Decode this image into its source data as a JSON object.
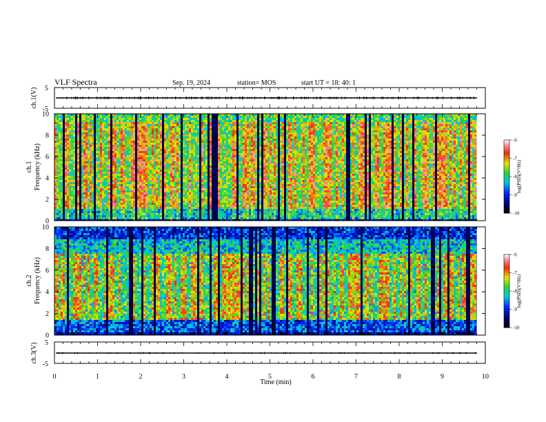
{
  "header": {
    "title": "VLF Spectra",
    "date": "Sep. 19, 2024",
    "station": "station= MOS",
    "start": "start UT =   18: 40: 1"
  },
  "chart_data": [
    {
      "type": "line",
      "panel": "ch1-waveform",
      "ylabel": "ch.1(V)",
      "ylim": [
        -5,
        5
      ],
      "yticks": [
        "5",
        "-5"
      ],
      "x": [
        0,
        10
      ],
      "y": [
        0,
        0
      ],
      "xlim": [
        0,
        10
      ]
    },
    {
      "type": "heatmap",
      "panel": "ch1-spectrogram",
      "ylabel_top": "ch.1",
      "ylabel": "Frequency (kHz)",
      "ylim": [
        0,
        10
      ],
      "yticks": [
        "0",
        "2",
        "4",
        "6",
        "8",
        "10"
      ],
      "xlim": [
        0,
        10
      ],
      "data_end_min": 9.8,
      "colorbar": {
        "label": "log(PSD)(V²/Hz)",
        "range": [
          -10,
          -6
        ],
        "ticks": [
          "-6",
          "-7",
          "-8",
          "-9",
          "-10"
        ]
      }
    },
    {
      "type": "heatmap",
      "panel": "ch2-spectrogram",
      "ylabel_top": "ch.2",
      "ylabel": "Frequency (kHz)",
      "ylim": [
        0,
        10
      ],
      "yticks": [
        "0",
        "2",
        "4",
        "6",
        "8",
        "10"
      ],
      "xlim": [
        0,
        10
      ],
      "data_end_min": 9.8,
      "colorbar": {
        "label": "log(PSD)(V²/Hz)",
        "range": [
          -10,
          -6
        ],
        "ticks": [
          "-6",
          "-7",
          "-8",
          "-9",
          "-10"
        ]
      }
    },
    {
      "type": "line",
      "panel": "ch3-waveform",
      "ylabel": "ch.3(V)",
      "ylim": [
        -5,
        5
      ],
      "yticks": [
        "5",
        "-5"
      ],
      "x": [
        0,
        10
      ],
      "y": [
        0,
        0
      ],
      "xlim": [
        0,
        10
      ],
      "xlabel": "Time (min)",
      "xticks": [
        "0",
        "1",
        "2",
        "3",
        "4",
        "5",
        "6",
        "7",
        "8",
        "9",
        "10"
      ]
    }
  ]
}
